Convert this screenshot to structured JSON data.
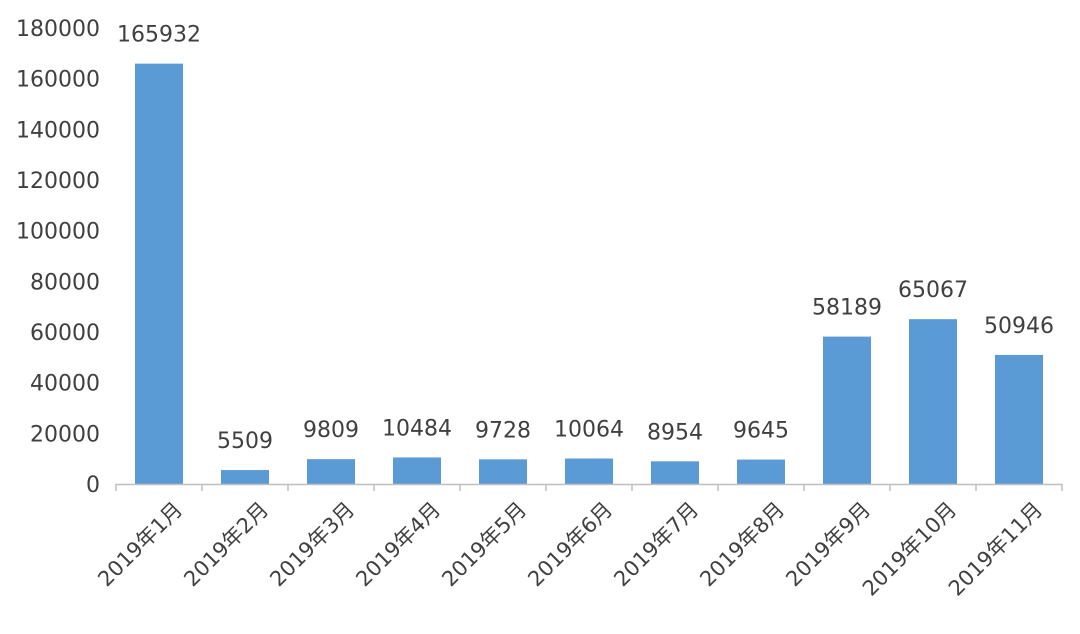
{
  "chart_data": {
    "type": "bar",
    "categories": [
      "2019年1月",
      "2019年2月",
      "2019年3月",
      "2019年4月",
      "2019年5月",
      "2019年6月",
      "2019年7月",
      "2019年8月",
      "2019年9月",
      "2019年10月",
      "2019年11月"
    ],
    "values": [
      165932,
      5509,
      9809,
      10484,
      9728,
      10064,
      8954,
      9645,
      58189,
      65067,
      50946
    ],
    "data_labels": [
      "165932",
      "5509",
      "9809",
      "10484",
      "9728",
      "10064",
      "8954",
      "9645",
      "58189",
      "65067",
      "50946"
    ],
    "y_ticks": [
      "0",
      "20000",
      "40000",
      "60000",
      "80000",
      "100000",
      "120000",
      "140000",
      "160000",
      "180000"
    ],
    "ylim": [
      0,
      180000
    ],
    "grid": false,
    "legend": "none",
    "colors": {
      "bar": "#5B9BD5",
      "axis": "#BFBFBF",
      "text": "#404040"
    }
  }
}
